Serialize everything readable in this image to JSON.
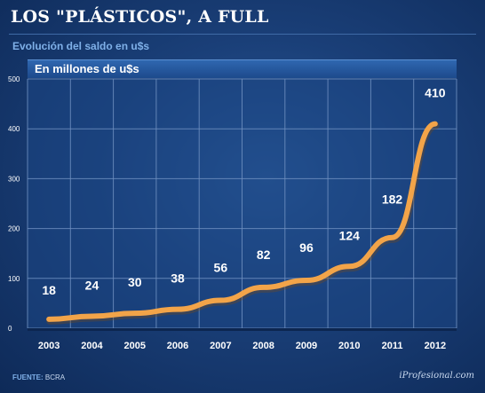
{
  "header": {
    "title": "LOS \"PLÁSTICOS\", A FULL",
    "subtitle": "Evolución del saldo en u$s",
    "band_label": "En millones de u$s"
  },
  "footer": {
    "source_label": "FUENTE:",
    "source_value": "BCRA",
    "brand": "iProfesional.com"
  },
  "colors": {
    "line": "#f2a449",
    "grid": "#6f8fbf"
  },
  "chart_data": {
    "type": "line",
    "categories": [
      "2003",
      "2004",
      "2005",
      "2006",
      "2007",
      "2008",
      "2009",
      "2010",
      "2011",
      "2012"
    ],
    "series": [
      {
        "values": [
          18,
          24,
          30,
          38,
          56,
          82,
          96,
          124,
          182,
          410
        ]
      }
    ],
    "data_labels": [
      "18",
      "24",
      "30",
      "38",
      "56",
      "82",
      "96",
      "124",
      "182",
      "410"
    ],
    "ylim": [
      0,
      500
    ],
    "yticks": [
      0,
      100,
      200,
      300,
      400,
      500
    ],
    "grid": true
  }
}
